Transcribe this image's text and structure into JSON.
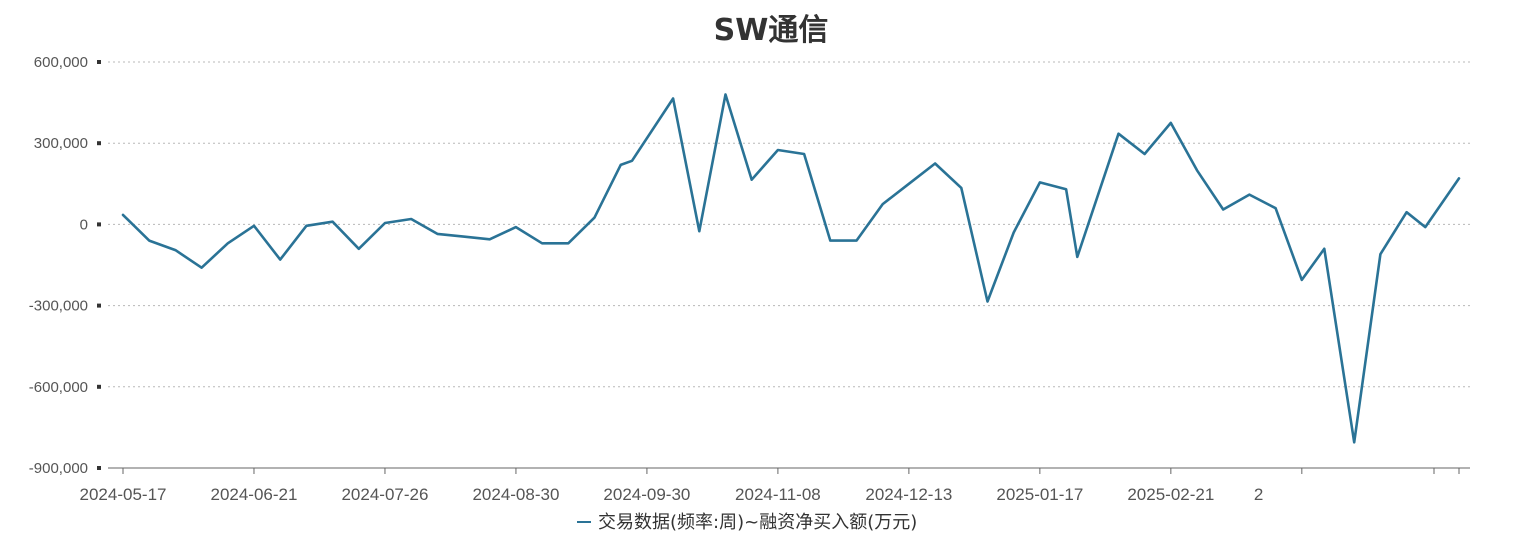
{
  "chart_data": {
    "type": "line",
    "title": "SW通信",
    "xlabel": "",
    "ylabel": "",
    "ylim": [
      -900000,
      600000
    ],
    "y_ticks": [
      600000,
      300000,
      0,
      -300000,
      -600000,
      -900000
    ],
    "y_tick_labels": [
      "600,000",
      "300,000",
      "0",
      "-300,000",
      "-600,000",
      "-900,000"
    ],
    "x_tick_labels": [
      "2024-05-17",
      "2024-06-21",
      "2024-07-26",
      "2024-08-30",
      "2024-09-30",
      "2024-11-08",
      "2024-12-13",
      "2025-01-17",
      "2025-02-21",
      "2"
    ],
    "grid": "horizontal dotted",
    "legend_position": "bottom",
    "x": [
      "2024-05-17",
      "2024-05-24",
      "2024-05-31",
      "2024-06-07",
      "2024-06-14",
      "2024-06-21",
      "2024-06-28",
      "2024-07-05",
      "2024-07-12",
      "2024-07-19",
      "2024-07-26",
      "2024-08-02",
      "2024-08-09",
      "2024-08-16",
      "2024-08-23",
      "2024-08-30",
      "2024-09-06",
      "2024-09-13",
      "2024-09-20",
      "2024-09-27",
      "2024-09-30",
      "2024-10-11",
      "2024-10-18",
      "2024-10-25",
      "2024-11-01",
      "2024-11-08",
      "2024-11-15",
      "2024-11-22",
      "2024-11-29",
      "2024-12-06",
      "2024-12-13",
      "2024-12-20",
      "2024-12-27",
      "2025-01-03",
      "2025-01-10",
      "2025-01-17",
      "2025-01-24",
      "2025-01-27",
      "2025-02-07",
      "2025-02-14",
      "2025-02-21",
      "2025-02-28",
      "2025-03-07",
      "2025-03-14",
      "2025-03-21",
      "2025-03-28",
      "2025-04-03",
      "2025-04-11",
      "2025-04-18",
      "2025-04-25",
      "2025-04-30",
      "2025-05-09"
    ],
    "series": [
      {
        "name": "交易数据(频率:周)~融资净买入额(万元)",
        "color": "#2a7396",
        "values": [
          35000,
          -60000,
          -95000,
          -160000,
          -70000,
          -5000,
          -130000,
          -5000,
          10000,
          -90000,
          5000,
          20000,
          -35000,
          -45000,
          -55000,
          -10000,
          -70000,
          -70000,
          25000,
          220000,
          235000,
          465000,
          -25000,
          480000,
          165000,
          275000,
          260000,
          -60000,
          -60000,
          75000,
          150000,
          225000,
          135000,
          -285000,
          -30000,
          155000,
          130000,
          -120000,
          335000,
          260000,
          375000,
          200000,
          55000,
          110000,
          60000,
          -205000,
          -90000,
          -805000,
          -110000,
          45000,
          -10000,
          170000
        ]
      }
    ]
  }
}
